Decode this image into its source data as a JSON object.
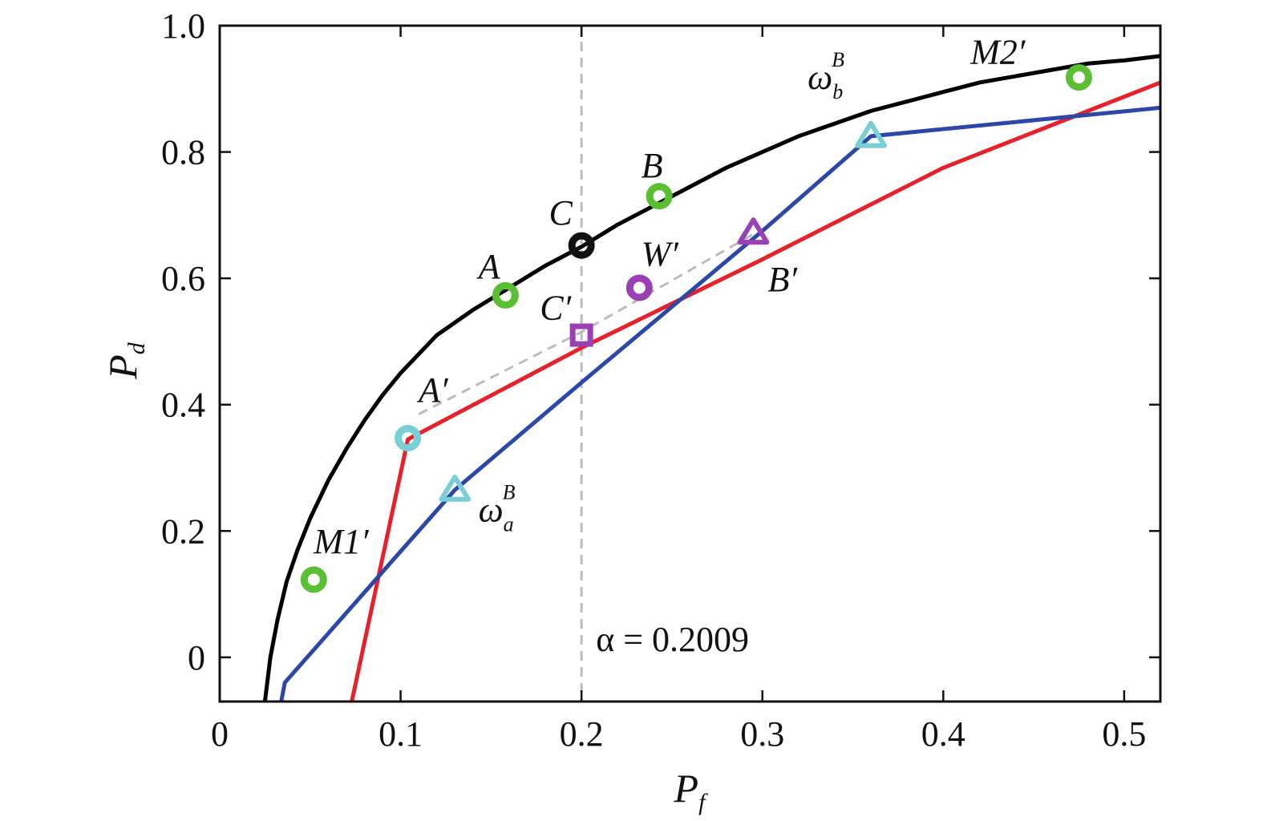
{
  "chart_data": {
    "type": "line",
    "xlabel": "P",
    "xlabel_sub": "f",
    "ylabel": "P",
    "ylabel_sub": "d",
    "xlim": [
      0,
      0.52
    ],
    "ylim": [
      -0.07,
      1.0
    ],
    "xticks": [
      "0",
      "0.1",
      "0.2",
      "0.3",
      "0.4",
      "0.5"
    ],
    "xtick_values": [
      0,
      0.1,
      0.2,
      0.3,
      0.4,
      0.5
    ],
    "yticks": [
      "0",
      "0.2",
      "0.4",
      "0.6",
      "0.8",
      "1.0"
    ],
    "ytick_values": [
      0,
      0.2,
      0.4,
      0.6,
      0.8,
      1.0
    ],
    "grid": false,
    "legend": "none",
    "series": [
      {
        "label_base": "ω",
        "label_sub": "b",
        "label_sup": "B",
        "color": "#000000",
        "x": [
          0.025,
          0.028,
          0.032,
          0.037,
          0.043,
          0.05,
          0.06,
          0.07,
          0.08,
          0.09,
          0.1,
          0.12,
          0.14,
          0.16,
          0.18,
          0.2,
          0.22,
          0.24,
          0.26,
          0.28,
          0.3,
          0.32,
          0.34,
          0.36,
          0.38,
          0.4,
          0.42,
          0.44,
          0.46,
          0.48,
          0.5,
          0.52
        ],
        "y": [
          -0.07,
          0.0,
          0.06,
          0.12,
          0.17,
          0.22,
          0.28,
          0.33,
          0.375,
          0.415,
          0.45,
          0.51,
          0.55,
          0.585,
          0.62,
          0.65,
          0.685,
          0.715,
          0.745,
          0.775,
          0.8,
          0.825,
          0.845,
          0.865,
          0.88,
          0.895,
          0.91,
          0.92,
          0.93,
          0.94,
          0.945,
          0.952
        ]
      },
      {
        "label_base": "",
        "label_sub": "",
        "label_sup": "",
        "color": "#e8202a",
        "x": [
          0.073,
          0.104,
          0.2,
          0.3,
          0.4,
          0.52
        ],
        "y": [
          -0.07,
          0.345,
          0.49,
          0.63,
          0.775,
          0.91
        ]
      },
      {
        "label_base": "ω",
        "label_sub": "a",
        "label_sup": "B",
        "color": "#2b47a8",
        "x": [
          0.034,
          0.036,
          0.13,
          0.2,
          0.3,
          0.36,
          0.52
        ],
        "y": [
          -0.07,
          -0.04,
          0.265,
          0.435,
          0.675,
          0.825,
          0.87
        ]
      }
    ],
    "series_labels": [
      {
        "base": "ω",
        "sub": "b",
        "sup": "B",
        "x": 0.325,
        "y": 0.9
      },
      {
        "base": "ω",
        "sub": "a",
        "sup": "B",
        "x": 0.143,
        "y": 0.215
      }
    ],
    "connector": {
      "x": [
        0.11,
        0.2,
        0.295
      ],
      "y": [
        0.385,
        0.515,
        0.67
      ],
      "color": "#bbbbbb"
    },
    "vline": {
      "x": 0.2,
      "color": "#bbbbbb",
      "label": "α = 0.2009",
      "label_x": 0.208,
      "label_y": 0.01
    },
    "points": [
      {
        "label": "A",
        "x": 0.158,
        "y": 0.573,
        "marker": "ring",
        "color": "#5bbf34",
        "lx": 0.143,
        "ly": 0.6
      },
      {
        "label": "B",
        "x": 0.243,
        "y": 0.73,
        "marker": "ring",
        "color": "#5bbf34",
        "lx": 0.233,
        "ly": 0.76
      },
      {
        "label": "C",
        "x": 0.2,
        "y": 0.652,
        "marker": "ring",
        "color": "#111111",
        "lx": 0.182,
        "ly": 0.685
      },
      {
        "label": "M1′",
        "x": 0.052,
        "y": 0.123,
        "marker": "ring",
        "color": "#5bbf34",
        "lx": 0.052,
        "ly": 0.165
      },
      {
        "label": "M2′",
        "x": 0.475,
        "y": 0.918,
        "marker": "ring",
        "color": "#5bbf34",
        "lx": 0.415,
        "ly": 0.94
      },
      {
        "label": "W′",
        "x": 0.232,
        "y": 0.585,
        "marker": "ring",
        "color": "#9b3fb5",
        "lx": 0.233,
        "ly": 0.62
      },
      {
        "label": "A′",
        "x": 0.104,
        "y": 0.347,
        "marker": "ring",
        "color": "#79cfd6",
        "lx": 0.11,
        "ly": 0.405
      },
      {
        "label": "C′",
        "x": 0.2,
        "y": 0.51,
        "marker": "square",
        "color": "#9b3fb5",
        "lx": 0.177,
        "ly": 0.535
      },
      {
        "label": "B′",
        "x": 0.295,
        "y": 0.672,
        "marker": "triangle",
        "color": "#9b3fb5",
        "lx": 0.303,
        "ly": 0.58
      },
      {
        "label": "",
        "x": 0.13,
        "y": 0.265,
        "marker": "triangle",
        "color": "#79cfd6",
        "lx": 0,
        "ly": 0
      },
      {
        "label": "",
        "x": 0.36,
        "y": 0.825,
        "marker": "triangle",
        "color": "#79cfd6",
        "lx": 0,
        "ly": 0
      }
    ]
  }
}
